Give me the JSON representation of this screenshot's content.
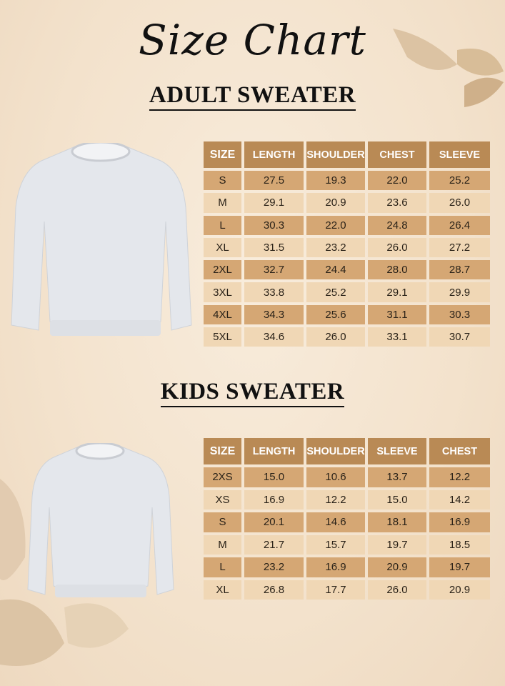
{
  "title": "Size Chart",
  "colors": {
    "header": "#b98a55",
    "row_dark": "#d5a774",
    "row_light": "#f0d7b5",
    "background": "#f5e6d2"
  },
  "adult": {
    "heading": "ADULT SWEATER",
    "columns": [
      "SIZE",
      "LENGTH",
      "SHOULDER",
      "CHEST",
      "SLEEVE"
    ],
    "rows": [
      [
        "S",
        "27.5",
        "19.3",
        "22.0",
        "25.2"
      ],
      [
        "M",
        "29.1",
        "20.9",
        "23.6",
        "26.0"
      ],
      [
        "L",
        "30.3",
        "22.0",
        "24.8",
        "26.4"
      ],
      [
        "XL",
        "31.5",
        "23.2",
        "26.0",
        "27.2"
      ],
      [
        "2XL",
        "32.7",
        "24.4",
        "28.0",
        "28.7"
      ],
      [
        "3XL",
        "33.8",
        "25.2",
        "29.1",
        "29.9"
      ],
      [
        "4XL",
        "34.3",
        "25.6",
        "31.1",
        "30.3"
      ],
      [
        "5XL",
        "34.6",
        "26.0",
        "33.1",
        "30.7"
      ]
    ]
  },
  "kids": {
    "heading": "KIDS SWEATER",
    "columns": [
      "SIZE",
      "LENGTH",
      "SHOULDER",
      "SLEEVE",
      "CHEST"
    ],
    "rows": [
      [
        "2XS",
        "15.0",
        "10.6",
        "13.7",
        "12.2"
      ],
      [
        "XS",
        "16.9",
        "12.2",
        "15.0",
        "14.2"
      ],
      [
        "S",
        "20.1",
        "14.6",
        "18.1",
        "16.9"
      ],
      [
        "M",
        "21.7",
        "15.7",
        "19.7",
        "18.5"
      ],
      [
        "L",
        "23.2",
        "16.9",
        "20.9",
        "19.7"
      ],
      [
        "XL",
        "26.8",
        "17.7",
        "26.0",
        "20.9"
      ]
    ]
  }
}
